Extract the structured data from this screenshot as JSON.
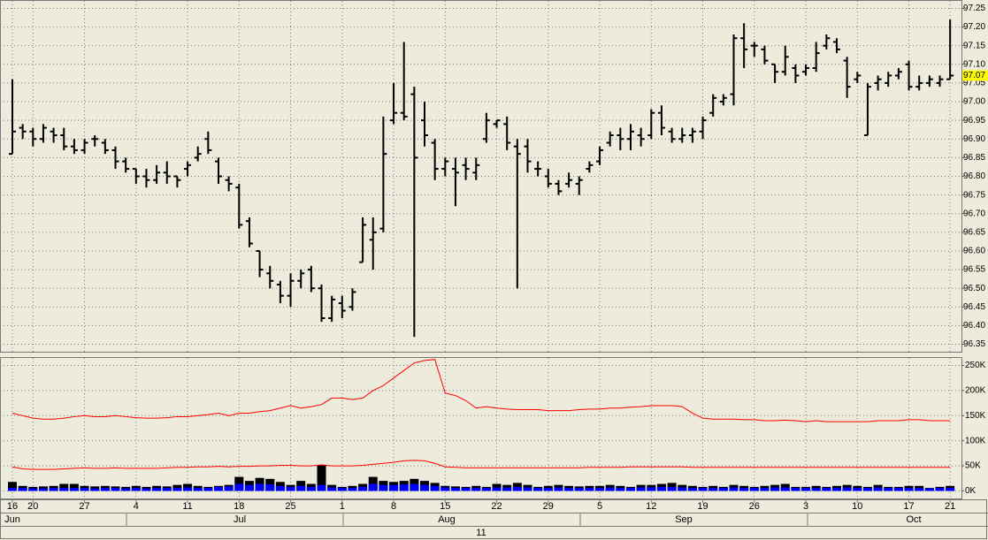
{
  "chart_data": [
    {
      "type": "ohlc",
      "categories": [
        "16",
        null,
        "20",
        null,
        null,
        null,
        null,
        "27",
        null,
        null,
        null,
        null,
        "4",
        null,
        null,
        null,
        null,
        "11",
        null,
        null,
        null,
        null,
        "18",
        null,
        null,
        null,
        null,
        "25",
        null,
        null,
        null,
        null,
        "1",
        null,
        null,
        null,
        null,
        "8",
        null,
        null,
        null,
        null,
        "15",
        null,
        null,
        null,
        null,
        "22",
        null,
        null,
        null,
        null,
        "29",
        null,
        null,
        null,
        null,
        "5",
        null,
        null,
        null,
        null,
        "12",
        null,
        null,
        null,
        null,
        "19",
        null,
        null,
        null,
        null,
        "26",
        null,
        null,
        null,
        null,
        "3",
        null,
        null,
        null,
        null,
        "10",
        null,
        null,
        null,
        null,
        "17",
        null,
        null,
        null,
        "21"
      ],
      "open": [
        96.86,
        96.93,
        96.92,
        96.9,
        96.92,
        96.91,
        96.88,
        96.87,
        96.9,
        96.89,
        96.87,
        96.84,
        96.82,
        96.8,
        96.79,
        96.81,
        96.8,
        96.82,
        96.85,
        96.9,
        96.84,
        96.79,
        96.77,
        96.68,
        96.6,
        96.54,
        96.51,
        96.48,
        96.52,
        96.55,
        96.5,
        96.42,
        96.46,
        96.45,
        96.57,
        96.63,
        96.66,
        96.95,
        96.97,
        97.02,
        96.95,
        96.89,
        96.82,
        96.82,
        96.83,
        96.81,
        96.9,
        96.94,
        96.94,
        96.88,
        96.88,
        96.82,
        96.8,
        96.78,
        96.78,
        96.78,
        96.82,
        96.84,
        96.89,
        96.91,
        96.9,
        96.91,
        96.91,
        96.97,
        96.92,
        96.9,
        96.91,
        96.92,
        96.97,
        97.0,
        97.02,
        97.17,
        97.15,
        97.14,
        97.1,
        97.08,
        97.09,
        97.08,
        97.09,
        97.15,
        97.16,
        97.11,
        97.06,
        96.91,
        97.05,
        97.05,
        97.07,
        97.1,
        97.04,
        97.05,
        97.05,
        97.06
      ],
      "high": [
        97.06,
        96.94,
        96.93,
        96.94,
        96.93,
        96.93,
        96.9,
        96.9,
        96.91,
        96.9,
        96.88,
        96.85,
        96.82,
        96.82,
        96.83,
        96.84,
        96.8,
        96.84,
        96.88,
        96.92,
        96.85,
        96.8,
        96.78,
        96.69,
        96.6,
        96.56,
        96.52,
        96.54,
        96.55,
        96.56,
        96.51,
        96.48,
        96.48,
        96.5,
        96.69,
        96.69,
        96.96,
        97.05,
        97.16,
        97.04,
        97.0,
        96.9,
        96.85,
        96.85,
        96.85,
        96.85,
        96.97,
        96.95,
        96.96,
        96.9,
        96.9,
        96.84,
        96.82,
        96.79,
        96.81,
        96.8,
        96.84,
        96.88,
        96.92,
        96.93,
        96.94,
        96.93,
        96.98,
        96.99,
        96.93,
        96.93,
        96.93,
        96.96,
        97.02,
        97.02,
        97.18,
        97.21,
        97.16,
        97.15,
        97.1,
        97.15,
        97.1,
        97.1,
        97.16,
        97.18,
        97.17,
        97.12,
        97.08,
        97.05,
        97.07,
        97.08,
        97.09,
        97.11,
        97.07,
        97.07,
        97.07,
        97.22
      ],
      "low": [
        96.86,
        96.9,
        96.88,
        96.89,
        96.89,
        96.87,
        96.86,
        96.86,
        96.88,
        96.86,
        96.82,
        96.81,
        96.78,
        96.77,
        96.78,
        96.78,
        96.77,
        96.8,
        96.84,
        96.86,
        96.78,
        96.76,
        96.66,
        96.61,
        96.53,
        96.5,
        96.46,
        96.45,
        96.5,
        96.49,
        96.41,
        96.41,
        96.42,
        96.44,
        96.57,
        96.55,
        96.65,
        96.94,
        96.95,
        96.37,
        96.88,
        96.79,
        96.8,
        96.72,
        96.79,
        96.79,
        96.89,
        96.93,
        96.87,
        96.5,
        96.81,
        96.8,
        96.77,
        96.75,
        96.77,
        96.75,
        96.81,
        96.83,
        96.88,
        96.87,
        96.87,
        96.88,
        96.9,
        96.91,
        96.89,
        96.89,
        96.89,
        96.9,
        96.96,
        96.99,
        96.99,
        97.09,
        97.12,
        97.1,
        97.05,
        97.07,
        97.05,
        97.07,
        97.08,
        97.14,
        97.13,
        97.01,
        97.05,
        96.91,
        97.03,
        97.04,
        97.06,
        97.03,
        97.03,
        97.04,
        97.04,
        97.06
      ],
      "close": [
        96.92,
        96.92,
        96.9,
        96.93,
        96.91,
        96.88,
        96.87,
        96.89,
        96.9,
        96.87,
        96.84,
        96.82,
        96.8,
        96.79,
        96.81,
        96.8,
        96.79,
        96.83,
        96.86,
        96.87,
        96.8,
        96.78,
        96.67,
        96.62,
        96.55,
        96.52,
        96.48,
        96.52,
        96.54,
        96.5,
        96.42,
        96.47,
        96.44,
        96.49,
        96.67,
        96.65,
        96.86,
        96.97,
        96.96,
        96.85,
        96.91,
        96.82,
        96.84,
        96.81,
        96.82,
        96.83,
        96.95,
        96.95,
        96.89,
        96.86,
        96.84,
        96.82,
        96.78,
        96.76,
        96.79,
        96.79,
        96.83,
        96.87,
        96.91,
        96.9,
        96.92,
        96.9,
        96.97,
        96.93,
        96.9,
        96.91,
        96.92,
        96.95,
        97.01,
        97.01,
        97.17,
        97.14,
        97.15,
        97.11,
        97.08,
        97.12,
        97.07,
        97.09,
        97.13,
        97.17,
        97.14,
        97.04,
        97.07,
        97.04,
        97.06,
        97.07,
        97.08,
        97.04,
        97.05,
        97.06,
        97.06,
        97.07
      ],
      "color": "#000000",
      "last_value_color": "#ffff00",
      "ylim": [
        96.33,
        97.27
      ],
      "yticks": [
        96.35,
        {
          "value": 96.4,
          "label": "96.40"
        },
        96.45,
        {
          "value": 96.5,
          "label": "96.50"
        },
        96.55,
        {
          "value": 96.6,
          "label": "96.60"
        },
        96.65,
        {
          "value": 96.7,
          "label": "96.70"
        },
        96.75,
        {
          "value": 96.8,
          "label": "96.80"
        },
        96.85,
        {
          "value": 96.9,
          "label": "96.90"
        },
        96.95,
        {
          "value": 97,
          "label": "97.00"
        },
        97.05,
        {
          "value": 97.1,
          "label": "97.10"
        },
        97.15,
        {
          "value": 97.2,
          "label": "97.20"
        },
        97.25
      ],
      "grid": true,
      "month_labels": [
        "Jun",
        "Jul",
        "Aug",
        "Sep",
        "Oct"
      ],
      "year_label": "11"
    },
    {
      "type": "volume",
      "series": [
        {
          "color": "#000000",
          "kind": "bar",
          "values": [
            18000,
            10000,
            8000,
            9000,
            10000,
            14000,
            14000,
            10000,
            9000,
            10000,
            9000,
            8000,
            10000,
            8000,
            10000,
            9000,
            12000,
            14000,
            10000,
            8000,
            10000,
            12000,
            28000,
            20000,
            26000,
            24000,
            18000,
            12000,
            20000,
            14000,
            52000,
            12000,
            8000,
            10000,
            14000,
            28000,
            20000,
            18000,
            20000,
            24000,
            20000,
            16000,
            10000,
            9000,
            8000,
            10000,
            8000,
            14000,
            12000,
            16000,
            12000,
            8000,
            10000,
            12000,
            10000,
            9000,
            10000,
            10000,
            12000,
            10000,
            8000,
            12000,
            12000,
            14000,
            16000,
            12000,
            10000,
            8000,
            10000,
            8000,
            12000,
            10000,
            8000,
            10000,
            12000,
            14000,
            8000,
            8000,
            10000,
            8000,
            10000,
            12000,
            10000,
            8000,
            12000,
            8000,
            8000,
            10000,
            10000,
            6000,
            8000,
            10000
          ]
        },
        {
          "color": "#0000ff",
          "kind": "bar",
          "values": [
            6000,
            6000,
            5000,
            5000,
            6000,
            6000,
            6000,
            6000,
            5000,
            6000,
            6000,
            5000,
            6000,
            5000,
            6000,
            6000,
            6000,
            7000,
            6000,
            6000,
            8000,
            9000,
            14000,
            12000,
            14000,
            13000,
            10000,
            8000,
            10000,
            8000,
            12000,
            7000,
            6000,
            6000,
            8000,
            14000,
            12000,
            12000,
            13000,
            14000,
            12000,
            10000,
            7000,
            6000,
            6000,
            6000,
            6000,
            7000,
            7000,
            8000,
            7000,
            6000,
            6000,
            7000,
            6000,
            6000,
            6000,
            6000,
            7000,
            6000,
            6000,
            7000,
            7000,
            8000,
            8000,
            7000,
            6000,
            6000,
            6000,
            6000,
            7000,
            6000,
            6000,
            6000,
            7000,
            7000,
            6000,
            6000,
            6000,
            6000,
            6000,
            7000,
            6000,
            6000,
            7000,
            6000,
            6000,
            6000,
            6000,
            5000,
            6000,
            6000
          ]
        },
        {
          "color": "#ff0000",
          "kind": "line",
          "values": [
            155000,
            150000,
            145000,
            143000,
            143000,
            145000,
            148000,
            150000,
            148000,
            148000,
            150000,
            148000,
            146000,
            145000,
            145000,
            146000,
            148000,
            148000,
            150000,
            152000,
            155000,
            150000,
            155000,
            155000,
            158000,
            160000,
            165000,
            170000,
            165000,
            168000,
            172000,
            185000,
            185000,
            182000,
            185000,
            200000,
            210000,
            225000,
            240000,
            255000,
            260000,
            262000,
            195000,
            190000,
            180000,
            165000,
            168000,
            165000,
            163000,
            162000,
            162000,
            162000,
            160000,
            160000,
            160000,
            162000,
            163000,
            163000,
            165000,
            165000,
            167000,
            168000,
            170000,
            170000,
            170000,
            168000,
            155000,
            145000,
            143000,
            143000,
            143000,
            142000,
            142000,
            140000,
            140000,
            141000,
            140000,
            138000,
            140000,
            138000,
            138000,
            138000,
            138000,
            138000,
            140000,
            140000,
            140000,
            142000,
            142000,
            140000,
            140000,
            140000
          ]
        },
        {
          "color": "#ff0000",
          "kind": "line",
          "values": [
            48000,
            44000,
            43000,
            43000,
            43000,
            44000,
            45000,
            46000,
            45000,
            45000,
            46000,
            45000,
            45000,
            45000,
            45000,
            46000,
            47000,
            47000,
            48000,
            48000,
            49000,
            48000,
            49000,
            49000,
            50000,
            50000,
            51000,
            51000,
            50000,
            50000,
            52000,
            50000,
            50000,
            50000,
            51000,
            53000,
            55000,
            57000,
            60000,
            61000,
            60000,
            55000,
            48000,
            47000,
            46000,
            46000,
            46000,
            46000,
            46000,
            46000,
            46000,
            46000,
            46000,
            46000,
            46000,
            46000,
            47000,
            47000,
            47000,
            47000,
            48000,
            48000,
            48000,
            48000,
            48000,
            48000,
            47000,
            47000,
            47000,
            47000,
            47000,
            47000,
            47000,
            47000,
            47000,
            47000,
            47000,
            47000,
            47000,
            47000,
            47000,
            47000,
            47000,
            47000,
            47000,
            47000,
            47000,
            47000,
            47000,
            47000,
            47000,
            47000
          ]
        }
      ],
      "ylim": [
        -15000,
        265000
      ],
      "yticks": [
        {
          "value": 0,
          "label": "0K"
        },
        {
          "value": 50000,
          "label": "50K"
        },
        {
          "value": 100000,
          "label": "100K"
        },
        {
          "value": 150000,
          "label": "150K"
        },
        {
          "value": 200000,
          "label": "200K"
        },
        {
          "value": 250000,
          "label": "250K"
        }
      ],
      "grid": true
    }
  ]
}
